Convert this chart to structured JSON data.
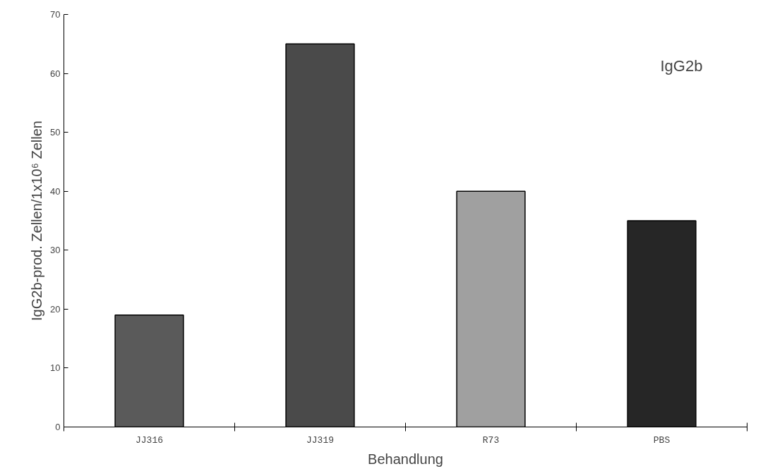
{
  "chart_data": {
    "type": "bar",
    "categories": [
      "JJ316",
      "JJ319",
      "R73",
      "PBS"
    ],
    "values": [
      19,
      65,
      40,
      35
    ],
    "colors": [
      "#5a5a5a",
      "#4a4a4a",
      "#a0a0a0",
      "#262626"
    ],
    "xlabel": "Behandlung",
    "ylabel": "IgG2b-prod. Zellen/1x10⁶ Zellen",
    "annotations": [
      "IgG2b"
    ],
    "ylim": [
      0,
      70
    ],
    "yticks": [
      0,
      10,
      20,
      30,
      40,
      50,
      60,
      70
    ],
    "grid": false
  }
}
